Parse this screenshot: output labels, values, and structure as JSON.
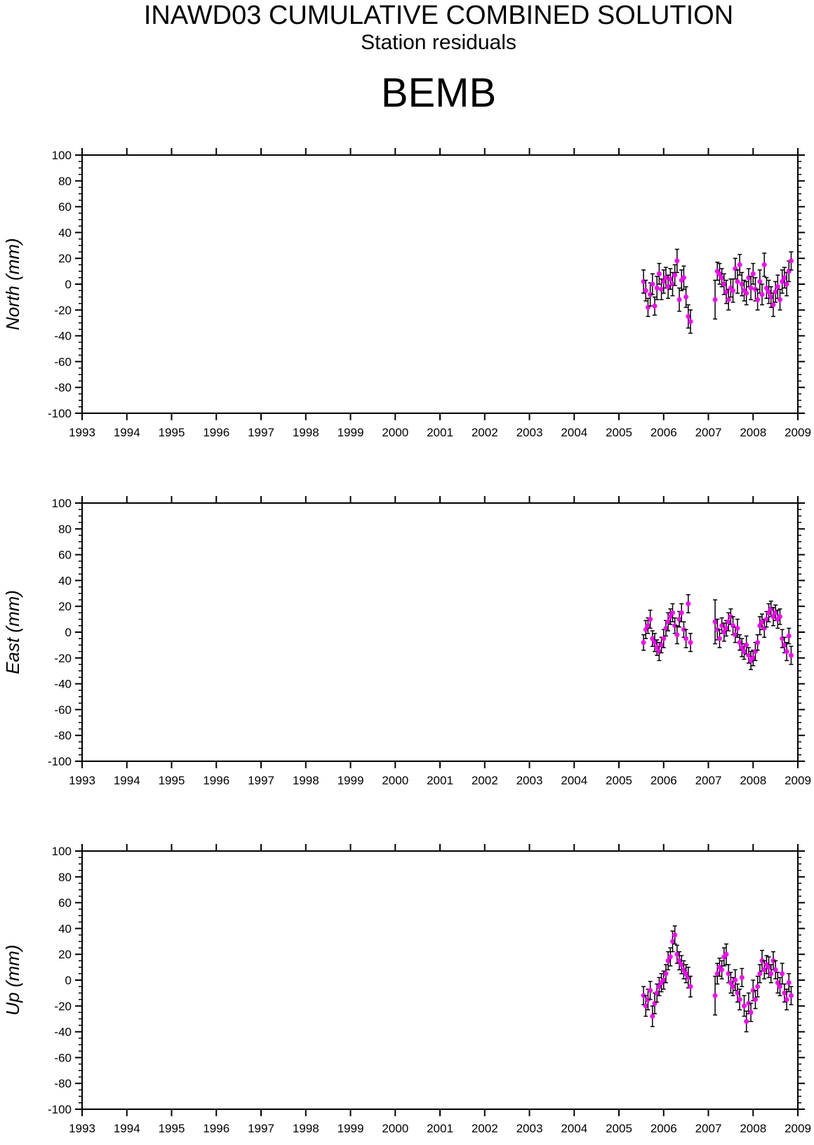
{
  "header": {
    "title": "INAWD03 CUMULATIVE COMBINED SOLUTION",
    "subtitle": "Station residuals",
    "station": "BEMB"
  },
  "colors": {
    "marker": "#ff00ff",
    "errorbar": "#000000",
    "axis": "#000000"
  },
  "chart_data": [
    {
      "type": "scatter",
      "ylabel": "North (mm)",
      "xlim": [
        1993,
        2009
      ],
      "ylim": [
        -100,
        100
      ],
      "xticks": [
        "1993",
        "1994",
        "1995",
        "1996",
        "1997",
        "1998",
        "1999",
        "2000",
        "2001",
        "2002",
        "2003",
        "2004",
        "2005",
        "2006",
        "2007",
        "2008",
        "2009"
      ],
      "yticks": [
        "100",
        "80",
        "60",
        "40",
        "20",
        "0",
        "-20",
        "-40",
        "-60",
        "-80",
        "-100"
      ],
      "error_bars": true,
      "series": [
        {
          "x": [
            2005.55,
            2005.6,
            2005.65,
            2005.7,
            2005.75,
            2005.8,
            2005.85,
            2005.9,
            2005.95,
            2006.0,
            2006.05,
            2006.1,
            2006.15,
            2006.2,
            2006.25,
            2006.3,
            2006.35,
            2006.4,
            2006.45,
            2006.5,
            2006.55,
            2006.6,
            2007.15,
            2007.2,
            2007.25,
            2007.3,
            2007.35,
            2007.4,
            2007.45,
            2007.5,
            2007.55,
            2007.6,
            2007.65,
            2007.7,
            2007.75,
            2007.8,
            2007.85,
            2007.9,
            2007.95,
            2008.0,
            2008.05,
            2008.1,
            2008.15,
            2008.2,
            2008.25,
            2008.3,
            2008.35,
            2008.4,
            2008.45,
            2008.5,
            2008.55,
            2008.6,
            2008.65,
            2008.7,
            2008.75,
            2008.8,
            2008.85
          ],
          "y": [
            2,
            -5,
            -18,
            -8,
            0,
            -17,
            -3,
            8,
            -4,
            2,
            5,
            -2,
            4,
            0,
            7,
            18,
            -12,
            3,
            5,
            -10,
            -25,
            -29,
            -12,
            10,
            8,
            5,
            0,
            -6,
            -12,
            -3,
            -5,
            12,
            2,
            15,
            0,
            -5,
            -7,
            5,
            -3,
            8,
            -4,
            -12,
            2,
            -8,
            15,
            -3,
            -6,
            -10,
            -16,
            -6,
            -2,
            -12,
            2,
            5,
            0,
            10,
            18
          ],
          "err": [
            9,
            8,
            7,
            9,
            8,
            7,
            9,
            8,
            8,
            9,
            8,
            9,
            8,
            9,
            8,
            9,
            9,
            8,
            9,
            8,
            9,
            9,
            15,
            7,
            8,
            7,
            8,
            9,
            8,
            7,
            9,
            8,
            9,
            8,
            9,
            8,
            9,
            7,
            9,
            8,
            9,
            8,
            9,
            8,
            9,
            8,
            9,
            8,
            9,
            8,
            9,
            8,
            9,
            8,
            9,
            8,
            7
          ]
        }
      ]
    },
    {
      "type": "scatter",
      "ylabel": "East (mm)",
      "xlim": [
        1993,
        2009
      ],
      "ylim": [
        -100,
        100
      ],
      "xticks": [
        "1993",
        "1994",
        "1995",
        "1996",
        "1997",
        "1998",
        "1999",
        "2000",
        "2001",
        "2002",
        "2003",
        "2004",
        "2005",
        "2006",
        "2007",
        "2008",
        "2009"
      ],
      "yticks": [
        "100",
        "80",
        "60",
        "40",
        "20",
        "0",
        "-20",
        "-40",
        "-60",
        "-80",
        "-100"
      ],
      "error_bars": true,
      "series": [
        {
          "x": [
            2005.55,
            2005.6,
            2005.65,
            2005.7,
            2005.75,
            2005.8,
            2005.85,
            2005.9,
            2005.95,
            2006.0,
            2006.05,
            2006.1,
            2006.15,
            2006.2,
            2006.25,
            2006.3,
            2006.35,
            2006.4,
            2006.45,
            2006.5,
            2006.55,
            2006.6,
            2007.15,
            2007.2,
            2007.25,
            2007.3,
            2007.35,
            2007.4,
            2007.45,
            2007.5,
            2007.55,
            2007.6,
            2007.65,
            2007.7,
            2007.75,
            2007.8,
            2007.85,
            2007.9,
            2007.95,
            2008.0,
            2008.05,
            2008.1,
            2008.15,
            2008.2,
            2008.25,
            2008.3,
            2008.35,
            2008.4,
            2008.45,
            2008.5,
            2008.55,
            2008.6,
            2008.65,
            2008.7,
            2008.75,
            2008.8,
            2008.85
          ],
          "y": [
            -8,
            2,
            5,
            10,
            -5,
            -8,
            -12,
            -15,
            -10,
            -5,
            3,
            8,
            12,
            15,
            5,
            -2,
            10,
            15,
            2,
            -5,
            22,
            -8,
            8,
            2,
            -5,
            5,
            0,
            3,
            8,
            12,
            5,
            -2,
            3,
            -8,
            -12,
            -15,
            -10,
            -18,
            -22,
            -20,
            -15,
            -8,
            5,
            8,
            3,
            10,
            15,
            18,
            12,
            15,
            10,
            12,
            -5,
            -10,
            -15,
            -3,
            -18
          ],
          "err": [
            6,
            7,
            6,
            7,
            6,
            7,
            6,
            7,
            6,
            7,
            6,
            7,
            6,
            7,
            6,
            7,
            6,
            7,
            6,
            7,
            7,
            7,
            17,
            8,
            7,
            6,
            7,
            6,
            7,
            6,
            7,
            6,
            7,
            6,
            7,
            6,
            7,
            6,
            7,
            6,
            7,
            6,
            7,
            6,
            7,
            6,
            7,
            6,
            7,
            6,
            7,
            6,
            7,
            6,
            7,
            6,
            7
          ]
        }
      ]
    },
    {
      "type": "scatter",
      "ylabel": "Up (mm)",
      "xlim": [
        1993,
        2009
      ],
      "ylim": [
        -100,
        100
      ],
      "xticks": [
        "1993",
        "1994",
        "1995",
        "1996",
        "1997",
        "1998",
        "1999",
        "2000",
        "2001",
        "2002",
        "2003",
        "2004",
        "2005",
        "2006",
        "2007",
        "2008",
        "2009"
      ],
      "yticks": [
        "100",
        "80",
        "60",
        "40",
        "20",
        "0",
        "-20",
        "-40",
        "-60",
        "-80",
        "-100"
      ],
      "error_bars": true,
      "series": [
        {
          "x": [
            2005.55,
            2005.6,
            2005.65,
            2005.7,
            2005.75,
            2005.8,
            2005.85,
            2005.9,
            2005.95,
            2006.0,
            2006.05,
            2006.1,
            2006.15,
            2006.2,
            2006.25,
            2006.3,
            2006.35,
            2006.4,
            2006.45,
            2006.5,
            2006.55,
            2006.6,
            2007.15,
            2007.2,
            2007.25,
            2007.3,
            2007.35,
            2007.4,
            2007.45,
            2007.5,
            2007.55,
            2007.6,
            2007.65,
            2007.7,
            2007.75,
            2007.8,
            2007.85,
            2007.9,
            2007.95,
            2008.0,
            2008.05,
            2008.1,
            2008.15,
            2008.2,
            2008.25,
            2008.3,
            2008.35,
            2008.4,
            2008.45,
            2008.5,
            2008.55,
            2008.6,
            2008.65,
            2008.7,
            2008.75,
            2008.8,
            2008.85
          ],
          "y": [
            -12,
            -20,
            -15,
            -8,
            -28,
            -18,
            -10,
            -5,
            -2,
            0,
            5,
            15,
            18,
            30,
            35,
            20,
            15,
            12,
            8,
            5,
            2,
            -5,
            -12,
            5,
            10,
            8,
            18,
            20,
            5,
            -2,
            -5,
            0,
            -10,
            -15,
            2,
            -20,
            -32,
            -18,
            -25,
            -8,
            -15,
            -5,
            5,
            15,
            8,
            12,
            10,
            5,
            15,
            8,
            -2,
            -5,
            5,
            -10,
            -15,
            -2,
            -12
          ],
          "err": [
            7,
            8,
            8,
            7,
            8,
            8,
            7,
            7,
            7,
            7,
            7,
            7,
            7,
            8,
            7,
            7,
            7,
            7,
            7,
            7,
            8,
            8,
            15,
            8,
            7,
            7,
            7,
            8,
            7,
            8,
            7,
            8,
            7,
            8,
            7,
            8,
            8,
            8,
            7,
            8,
            7,
            8,
            7,
            8,
            7,
            7,
            8,
            7,
            7,
            7,
            8,
            7,
            8,
            7,
            8,
            7,
            7
          ]
        }
      ]
    }
  ]
}
